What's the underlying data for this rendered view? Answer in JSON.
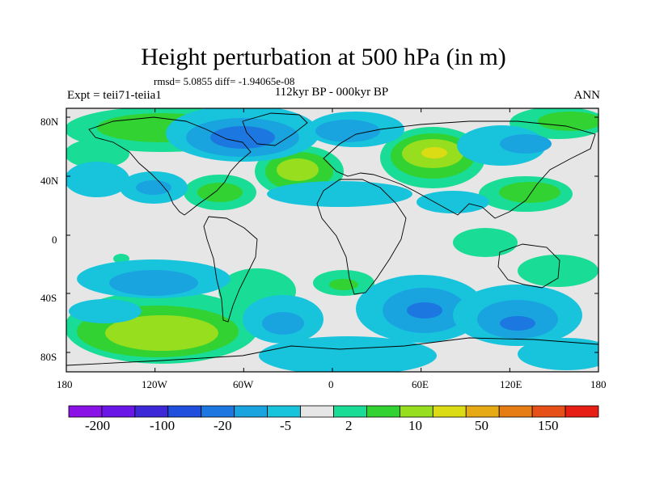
{
  "header": {
    "title": "Height perturbation at 500 hPa (in m)",
    "stats": "rmsd= 5.0855 diff= -1.94065e-08",
    "left_label": "Expt = teii71-teiia1",
    "center_label": "112kyr BP - 000kyr BP",
    "right_label": "ANN"
  },
  "axes": {
    "lon_labels": [
      "180",
      "120W",
      "60W",
      "0",
      "60E",
      "120E",
      "180"
    ],
    "lat_labels": [
      "80N",
      "40N",
      "0",
      "40S",
      "80S"
    ]
  },
  "colorbar": {
    "colors": [
      "#8a12e6",
      "#6a16e6",
      "#3c28d6",
      "#1f4fdc",
      "#1c78e0",
      "#19a4e0",
      "#18c4dc",
      "#e6e6e6",
      "#19dc96",
      "#32d232",
      "#96de1e",
      "#dcdc14",
      "#e6aa14",
      "#e67d14",
      "#e65018",
      "#e61e14"
    ],
    "labels": [
      "-200",
      "-100",
      "-20",
      "-5",
      "2",
      "10",
      "50",
      "150"
    ]
  },
  "colors": {
    "land_outline": "#000000",
    "neutral": "#e6e6e6"
  }
}
